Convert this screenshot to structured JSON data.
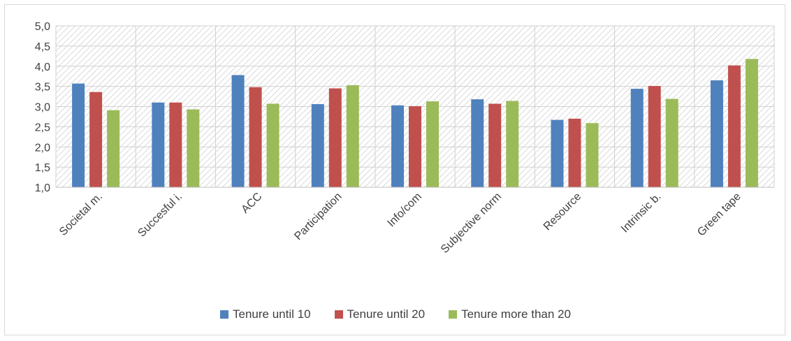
{
  "chart_data": {
    "type": "bar",
    "categories": [
      "Societal m.",
      "Succesful i.",
      "ACC",
      "Participation",
      "Info/com",
      "Subjective norm",
      "Resource",
      "Intrinsic b.",
      "Green tape"
    ],
    "series": [
      {
        "name": "Tenure until 10",
        "color": "#4f81bd",
        "values": [
          3.57,
          3.1,
          3.78,
          3.06,
          3.03,
          3.18,
          2.67,
          3.44,
          3.65
        ]
      },
      {
        "name": "Tenure until 20",
        "color": "#c0504d",
        "values": [
          3.36,
          3.1,
          3.48,
          3.45,
          3.01,
          3.07,
          2.7,
          3.51,
          4.02
        ]
      },
      {
        "name": "Tenure more than 20",
        "color": "#9bbb59",
        "values": [
          2.91,
          2.93,
          3.07,
          3.53,
          3.13,
          3.14,
          2.59,
          3.19,
          4.18
        ]
      }
    ],
    "yticks": [
      "1,0",
      "1,5",
      "2,0",
      "2,5",
      "3,0",
      "3,5",
      "4,0",
      "4,5",
      "5,0"
    ],
    "ylim": [
      1.0,
      5.0
    ],
    "grid": true,
    "legend_position": "bottom",
    "plot_background": "diagonal-hatch"
  }
}
